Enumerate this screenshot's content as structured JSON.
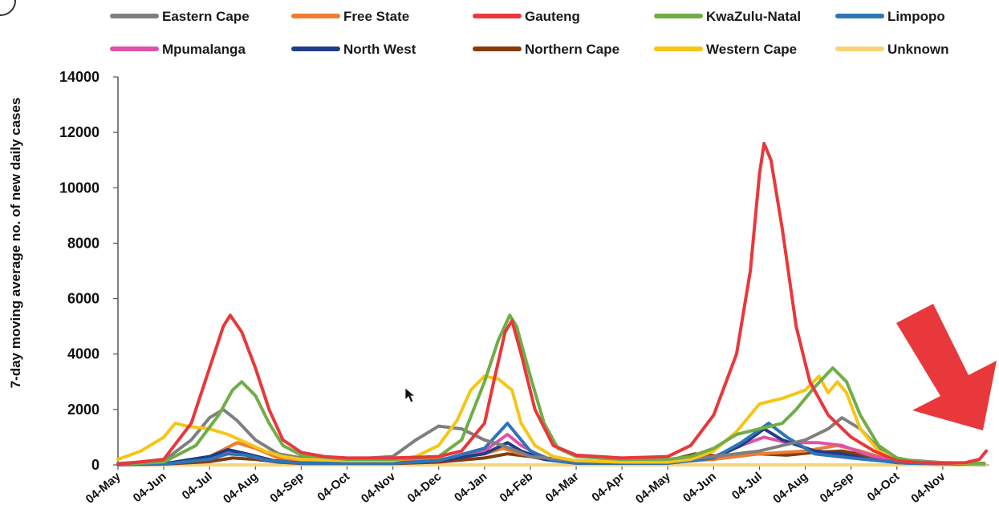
{
  "chart_data": {
    "type": "line",
    "title": "",
    "xlabel": "",
    "ylabel": "7-day moving average no. of new daily cases",
    "ylim": [
      0,
      14000
    ],
    "yticks": [
      0,
      2000,
      4000,
      6000,
      8000,
      10000,
      12000,
      14000
    ],
    "xticks": [
      "04-May",
      "04-Jun",
      "04-Jul",
      "04-Aug",
      "04-Sep",
      "04-Oct",
      "04-Nov",
      "04-Dec",
      "04-Jan",
      "04-Feb",
      "04-Mar",
      "04-Apr",
      "04-May",
      "04-Jun",
      "04-Jul",
      "04-Aug",
      "04-Sep",
      "04-Oct",
      "04-Nov"
    ],
    "legend_position": "top",
    "grid": false,
    "x_unit": "month index from 04-May (2020)",
    "series": [
      {
        "name": "Eastern Cape",
        "color": "#7f7f7f",
        "points": [
          [
            0,
            50
          ],
          [
            1,
            150
          ],
          [
            1.6,
            900
          ],
          [
            2,
            1700
          ],
          [
            2.3,
            2000
          ],
          [
            2.6,
            1600
          ],
          [
            3,
            900
          ],
          [
            3.5,
            400
          ],
          [
            4,
            250
          ],
          [
            5,
            200
          ],
          [
            6,
            300
          ],
          [
            6.5,
            900
          ],
          [
            7,
            1400
          ],
          [
            7.5,
            1300
          ],
          [
            8,
            900
          ],
          [
            8.4,
            700
          ],
          [
            9,
            300
          ],
          [
            10,
            150
          ],
          [
            11,
            100
          ],
          [
            12,
            150
          ],
          [
            13,
            300
          ],
          [
            14,
            500
          ],
          [
            14.5,
            700
          ],
          [
            15,
            900
          ],
          [
            15.5,
            1300
          ],
          [
            15.8,
            1700
          ],
          [
            16.2,
            1300
          ],
          [
            16.6,
            600
          ],
          [
            17,
            200
          ],
          [
            18,
            80
          ],
          [
            18.9,
            60
          ]
        ]
      },
      {
        "name": "Free State",
        "color": "#ed7d31",
        "points": [
          [
            0,
            10
          ],
          [
            1,
            30
          ],
          [
            2,
            300
          ],
          [
            2.6,
            800
          ],
          [
            3,
            600
          ],
          [
            3.5,
            250
          ],
          [
            4,
            120
          ],
          [
            5,
            80
          ],
          [
            6,
            100
          ],
          [
            7,
            200
          ],
          [
            8,
            400
          ],
          [
            8.4,
            600
          ],
          [
            8.8,
            400
          ],
          [
            9.5,
            150
          ],
          [
            10,
            80
          ],
          [
            11,
            60
          ],
          [
            12,
            80
          ],
          [
            13,
            200
          ],
          [
            14,
            400
          ],
          [
            15,
            500
          ],
          [
            15.7,
            700
          ],
          [
            16.2,
            500
          ],
          [
            16.8,
            200
          ],
          [
            17.5,
            60
          ],
          [
            18.9,
            30
          ]
        ]
      },
      {
        "name": "Gauteng",
        "color": "#e8383b",
        "points": [
          [
            0,
            20
          ],
          [
            1,
            200
          ],
          [
            1.6,
            1500
          ],
          [
            2,
            3500
          ],
          [
            2.3,
            5000
          ],
          [
            2.45,
            5400
          ],
          [
            2.7,
            4800
          ],
          [
            3,
            3500
          ],
          [
            3.3,
            2000
          ],
          [
            3.6,
            900
          ],
          [
            4,
            450
          ],
          [
            4.5,
            300
          ],
          [
            5,
            250
          ],
          [
            6,
            250
          ],
          [
            7,
            300
          ],
          [
            7.5,
            500
          ],
          [
            8,
            1500
          ],
          [
            8.2,
            3000
          ],
          [
            8.45,
            4800
          ],
          [
            8.6,
            5200
          ],
          [
            8.8,
            4000
          ],
          [
            9.1,
            2000
          ],
          [
            9.5,
            700
          ],
          [
            10,
            350
          ],
          [
            11,
            250
          ],
          [
            12,
            300
          ],
          [
            12.5,
            700
          ],
          [
            13,
            1800
          ],
          [
            13.5,
            4000
          ],
          [
            13.8,
            7000
          ],
          [
            14,
            10500
          ],
          [
            14.1,
            11600
          ],
          [
            14.25,
            11000
          ],
          [
            14.5,
            8500
          ],
          [
            14.8,
            5000
          ],
          [
            15.1,
            3000
          ],
          [
            15.5,
            1800
          ],
          [
            16,
            1000
          ],
          [
            16.5,
            500
          ],
          [
            17,
            150
          ],
          [
            17.5,
            80
          ],
          [
            18,
            60
          ],
          [
            18.5,
            80
          ],
          [
            18.8,
            200
          ],
          [
            18.95,
            500
          ]
        ]
      },
      {
        "name": "KwaZulu-Natal",
        "color": "#70ad47",
        "points": [
          [
            0,
            20
          ],
          [
            1,
            100
          ],
          [
            1.7,
            700
          ],
          [
            2.2,
            1800
          ],
          [
            2.5,
            2700
          ],
          [
            2.7,
            3000
          ],
          [
            3,
            2500
          ],
          [
            3.3,
            1500
          ],
          [
            3.6,
            700
          ],
          [
            4,
            350
          ],
          [
            5,
            200
          ],
          [
            6,
            200
          ],
          [
            7,
            300
          ],
          [
            7.5,
            900
          ],
          [
            8,
            3000
          ],
          [
            8.3,
            4500
          ],
          [
            8.55,
            5400
          ],
          [
            8.7,
            5000
          ],
          [
            9,
            3200
          ],
          [
            9.3,
            1500
          ],
          [
            9.6,
            600
          ],
          [
            10,
            300
          ],
          [
            11,
            200
          ],
          [
            12,
            200
          ],
          [
            12.5,
            300
          ],
          [
            13,
            600
          ],
          [
            13.5,
            1100
          ],
          [
            14,
            1300
          ],
          [
            14.5,
            1500
          ],
          [
            14.8,
            2000
          ],
          [
            15.2,
            2800
          ],
          [
            15.6,
            3500
          ],
          [
            15.9,
            3000
          ],
          [
            16.2,
            1800
          ],
          [
            16.6,
            700
          ],
          [
            17,
            250
          ],
          [
            17.5,
            100
          ],
          [
            18.9,
            50
          ]
        ]
      },
      {
        "name": "Limpopo",
        "color": "#2e75b6",
        "points": [
          [
            0,
            10
          ],
          [
            1,
            30
          ],
          [
            2,
            200
          ],
          [
            2.4,
            400
          ],
          [
            2.8,
            350
          ],
          [
            3.3,
            150
          ],
          [
            4,
            60
          ],
          [
            6,
            60
          ],
          [
            7,
            150
          ],
          [
            8,
            600
          ],
          [
            8.5,
            1500
          ],
          [
            8.7,
            1100
          ],
          [
            9,
            500
          ],
          [
            9.5,
            150
          ],
          [
            10,
            60
          ],
          [
            12,
            60
          ],
          [
            13,
            250
          ],
          [
            13.6,
            800
          ],
          [
            14.2,
            1500
          ],
          [
            14.6,
            1000
          ],
          [
            15.2,
            400
          ],
          [
            16,
            250
          ],
          [
            16.6,
            150
          ],
          [
            17.2,
            60
          ],
          [
            18.9,
            20
          ]
        ]
      },
      {
        "name": "Mpumalanga",
        "color": "#e052a8",
        "points": [
          [
            0,
            10
          ],
          [
            1,
            30
          ],
          [
            2,
            250
          ],
          [
            2.4,
            500
          ],
          [
            2.8,
            400
          ],
          [
            3.4,
            150
          ],
          [
            4,
            60
          ],
          [
            6,
            60
          ],
          [
            7,
            150
          ],
          [
            8,
            500
          ],
          [
            8.5,
            1100
          ],
          [
            8.8,
            700
          ],
          [
            9.3,
            250
          ],
          [
            10,
            60
          ],
          [
            12,
            60
          ],
          [
            13,
            300
          ],
          [
            13.6,
            700
          ],
          [
            14.1,
            1000
          ],
          [
            14.6,
            800
          ],
          [
            15.3,
            800
          ],
          [
            15.8,
            700
          ],
          [
            16.3,
            400
          ],
          [
            17,
            100
          ],
          [
            18.9,
            20
          ]
        ]
      },
      {
        "name": "North West",
        "color": "#1f3c88",
        "points": [
          [
            0,
            10
          ],
          [
            1,
            40
          ],
          [
            2,
            300
          ],
          [
            2.4,
            550
          ],
          [
            2.8,
            400
          ],
          [
            3.4,
            150
          ],
          [
            4,
            60
          ],
          [
            6,
            60
          ],
          [
            7,
            150
          ],
          [
            8,
            400
          ],
          [
            8.5,
            800
          ],
          [
            8.8,
            500
          ],
          [
            9.3,
            200
          ],
          [
            10,
            60
          ],
          [
            12,
            60
          ],
          [
            13,
            250
          ],
          [
            13.6,
            700
          ],
          [
            14.1,
            1300
          ],
          [
            14.5,
            900
          ],
          [
            15.2,
            500
          ],
          [
            15.8,
            400
          ],
          [
            16.4,
            200
          ],
          [
            17,
            80
          ],
          [
            18.9,
            20
          ]
        ]
      },
      {
        "name": "Northern Cape",
        "color": "#843c0c",
        "points": [
          [
            0,
            10
          ],
          [
            1,
            30
          ],
          [
            2,
            120
          ],
          [
            2.5,
            250
          ],
          [
            3,
            200
          ],
          [
            3.5,
            100
          ],
          [
            4,
            50
          ],
          [
            6,
            50
          ],
          [
            7,
            100
          ],
          [
            8,
            250
          ],
          [
            8.5,
            400
          ],
          [
            9,
            300
          ],
          [
            9.5,
            150
          ],
          [
            10,
            80
          ],
          [
            11,
            80
          ],
          [
            12,
            150
          ],
          [
            12.6,
            400
          ],
          [
            13.2,
            300
          ],
          [
            14,
            400
          ],
          [
            14.6,
            350
          ],
          [
            15.2,
            450
          ],
          [
            15.8,
            500
          ],
          [
            16.3,
            350
          ],
          [
            17,
            150
          ],
          [
            17.6,
            60
          ],
          [
            18.9,
            20
          ]
        ]
      },
      {
        "name": "Western Cape",
        "color": "#f5c518",
        "points": [
          [
            0,
            200
          ],
          [
            0.5,
            500
          ],
          [
            1,
            1000
          ],
          [
            1.25,
            1500
          ],
          [
            1.5,
            1400
          ],
          [
            2,
            1300
          ],
          [
            2.4,
            1100
          ],
          [
            2.8,
            800
          ],
          [
            3.2,
            500
          ],
          [
            3.6,
            300
          ],
          [
            4,
            200
          ],
          [
            5,
            150
          ],
          [
            6,
            150
          ],
          [
            6.5,
            300
          ],
          [
            7,
            700
          ],
          [
            7.4,
            1600
          ],
          [
            7.7,
            2700
          ],
          [
            8,
            3200
          ],
          [
            8.3,
            3100
          ],
          [
            8.6,
            2700
          ],
          [
            8.8,
            1500
          ],
          [
            9.1,
            700
          ],
          [
            9.5,
            300
          ],
          [
            10,
            150
          ],
          [
            11,
            100
          ],
          [
            12,
            100
          ],
          [
            12.5,
            200
          ],
          [
            13,
            500
          ],
          [
            13.5,
            1200
          ],
          [
            14,
            2200
          ],
          [
            14.5,
            2400
          ],
          [
            15,
            2700
          ],
          [
            15.3,
            3200
          ],
          [
            15.5,
            2600
          ],
          [
            15.7,
            3000
          ],
          [
            15.9,
            2600
          ],
          [
            16.2,
            1300
          ],
          [
            16.6,
            500
          ],
          [
            17,
            200
          ],
          [
            17.5,
            100
          ],
          [
            18.9,
            30
          ]
        ]
      },
      {
        "name": "Unknown",
        "color": "#f8d37a",
        "points": [
          [
            0,
            0
          ],
          [
            18.95,
            0
          ]
        ]
      }
    ]
  }
}
